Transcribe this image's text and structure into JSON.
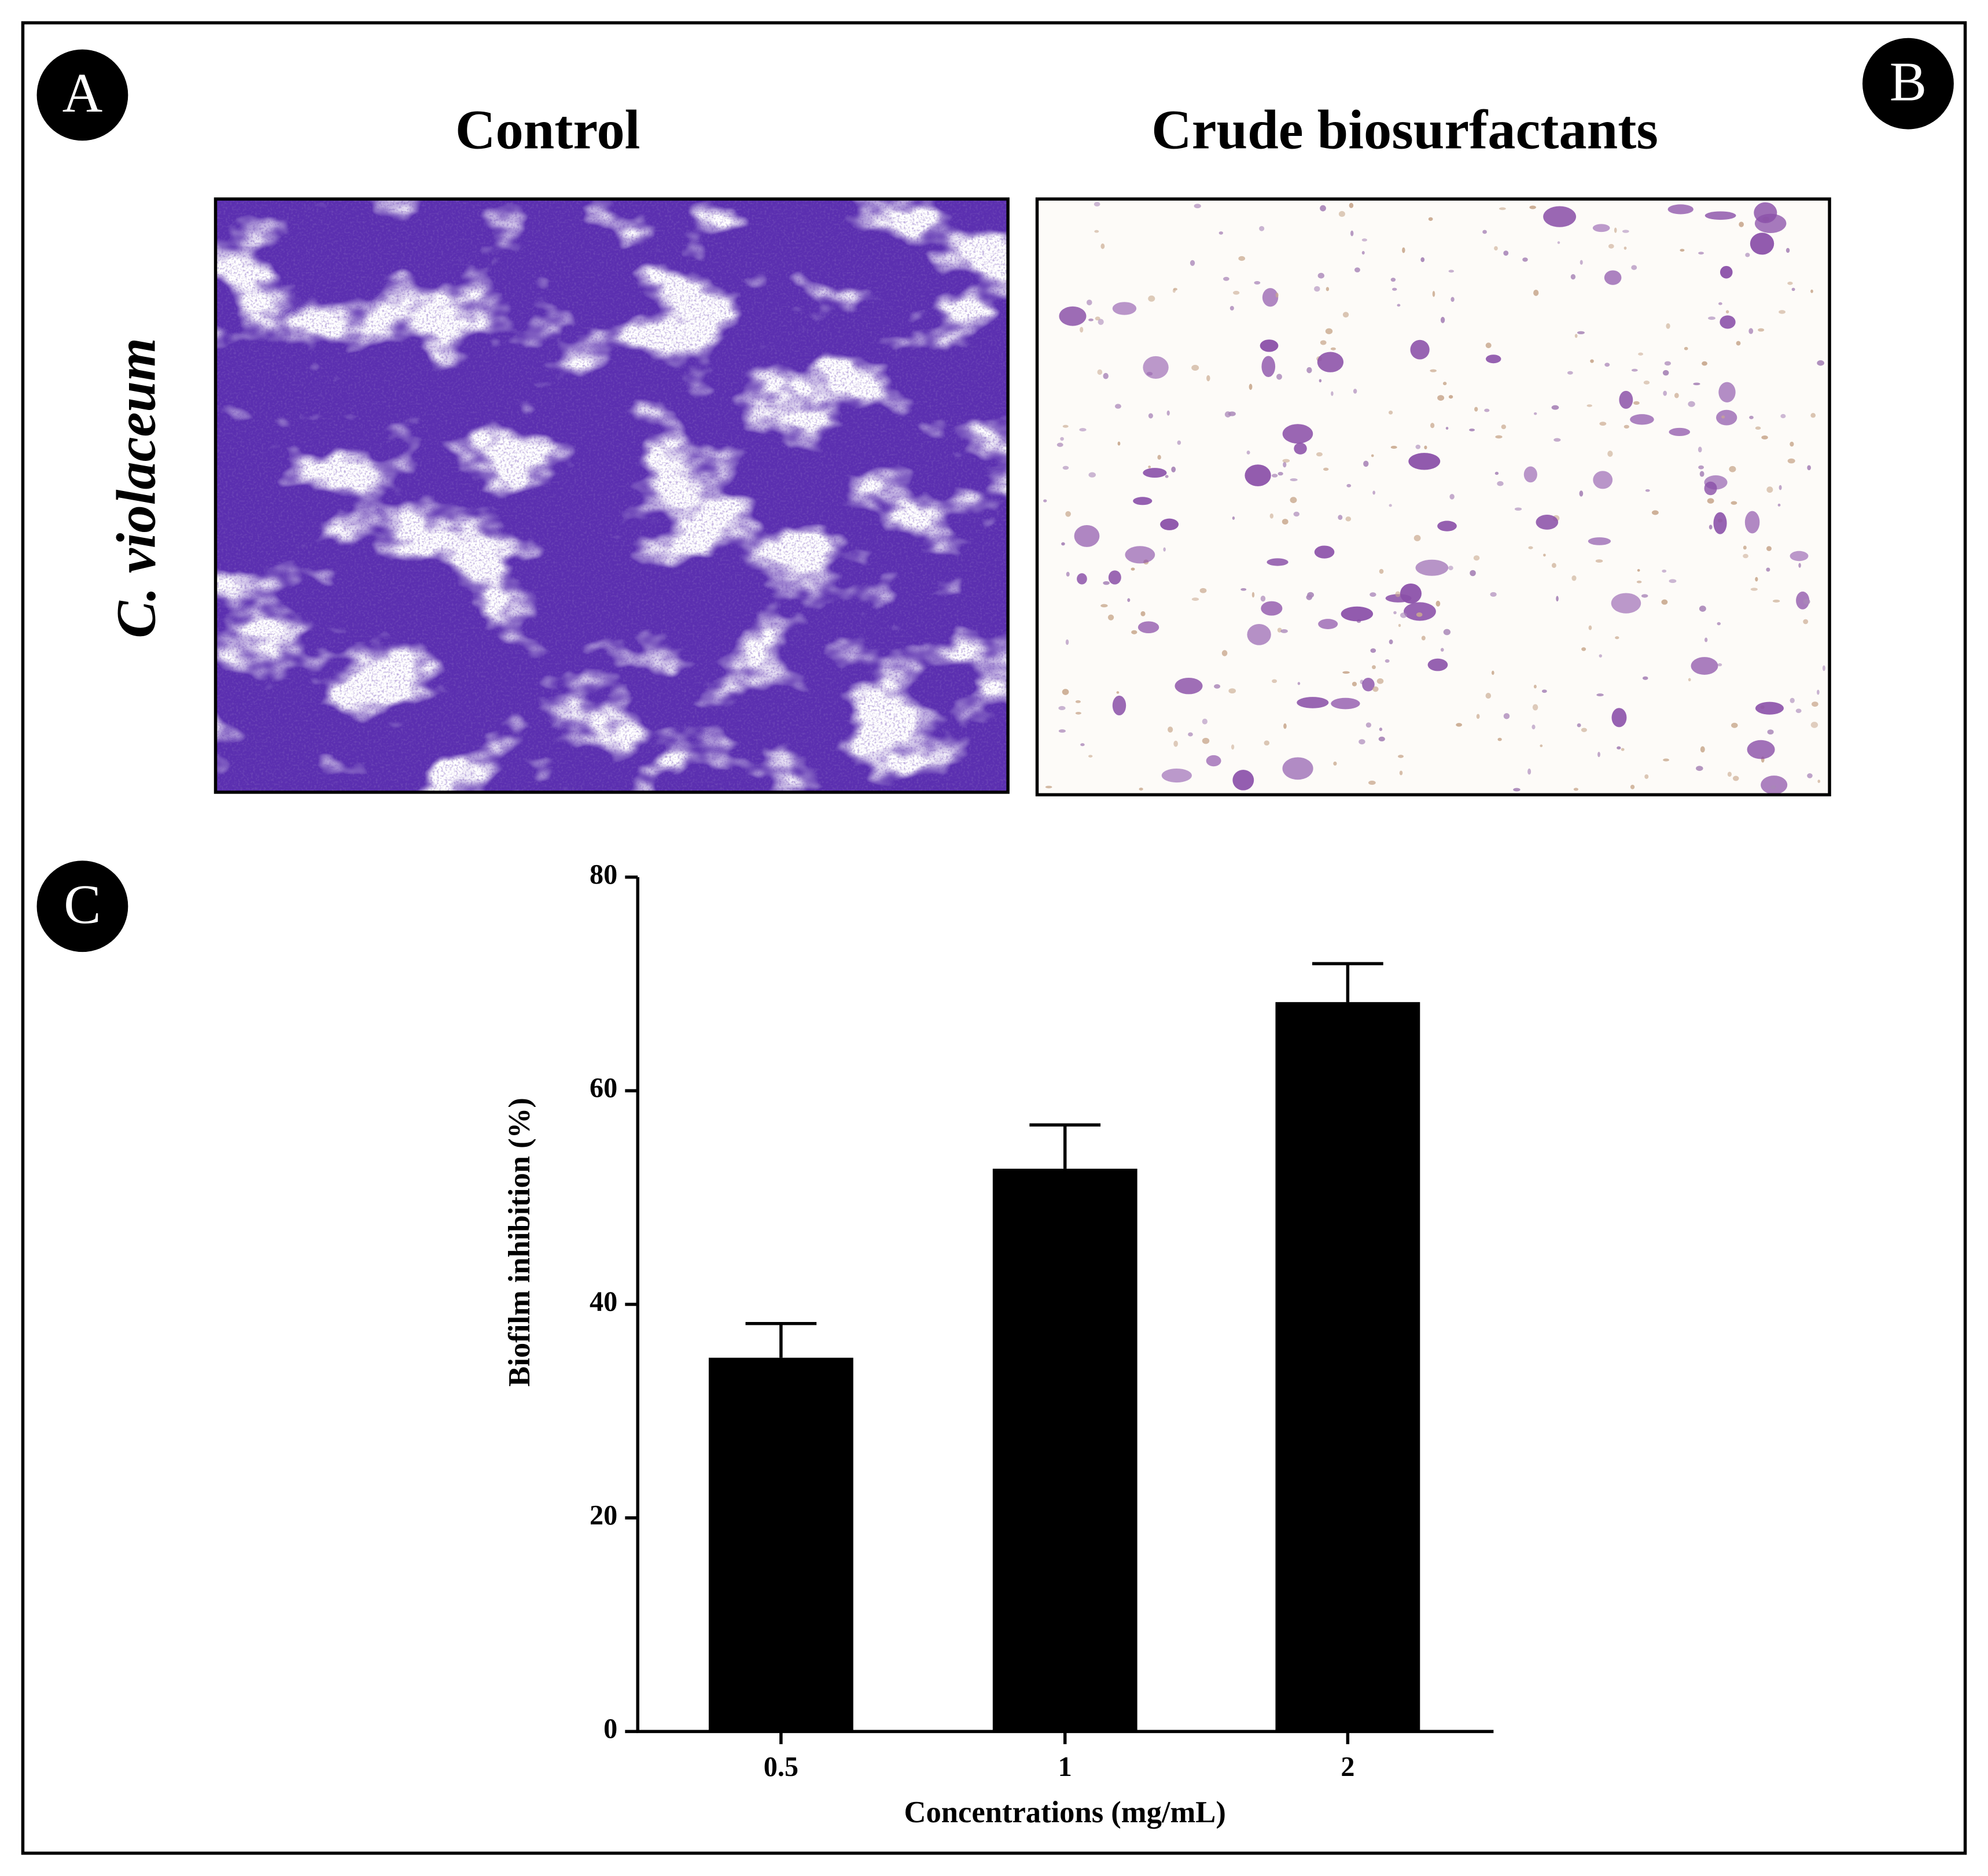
{
  "labels": [
    "A",
    "B",
    "C"
  ],
  "columns": [
    "Control",
    "Crude biosurfactants"
  ],
  "row_label": "C. violaceum",
  "chart_data": {
    "type": "bar",
    "x_label": "Concentrations (mg/mL)",
    "y_label": "Biofilm inhibition (%)",
    "categories": [
      "0.5",
      "1",
      "2"
    ],
    "values": [
      35,
      52.7,
      68.3
    ],
    "errors": [
      3.2,
      4.1,
      3.6
    ],
    "color": "#000000",
    "ylim": [
      0,
      80
    ],
    "yticks": [
      0,
      20,
      40,
      60,
      80
    ],
    "grid": false
  }
}
